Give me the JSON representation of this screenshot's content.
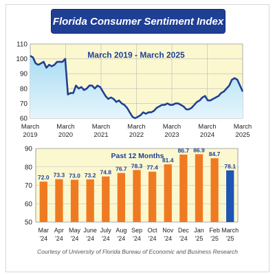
{
  "title": "Florida Consumer Sentiment Index",
  "credit": "Courtesy of University of Florida Bureau of Economic and Business Research",
  "colors": {
    "title_bg": "#1f3f94",
    "plot_bg": "#fbf8d0",
    "line": "#1f3f94",
    "area_top": "#a9dcf3",
    "bar_orange": "#f07a22",
    "bar_blue": "#1f55b5",
    "label_blue": "#1f3f94"
  },
  "chart_data": [
    {
      "type": "area",
      "title": "March 2019 - March 2025",
      "ylim": [
        60,
        110
      ],
      "yticks": [
        "110",
        "100",
        "90",
        "80",
        "70",
        "60"
      ],
      "xticks": [
        {
          "line1": "March",
          "line2": "2019"
        },
        {
          "line1": "March",
          "line2": "2020"
        },
        {
          "line1": "March",
          "line2": "2021"
        },
        {
          "line1": "March",
          "line2": "2022"
        },
        {
          "line1": "March",
          "line2": "2023"
        },
        {
          "line1": "March",
          "line2": "2024"
        },
        {
          "line1": "March",
          "line2": "2025"
        }
      ],
      "grid": true,
      "series": [
        {
          "values": [
            102,
            101,
            97,
            96,
            97,
            98,
            94,
            96,
            95,
            96,
            98,
            98,
            98,
            100,
            76,
            77,
            77,
            82,
            80,
            81,
            79,
            80,
            82,
            82,
            80,
            82,
            81,
            78,
            75,
            73,
            74,
            73,
            71,
            72,
            70,
            69,
            67,
            64,
            61,
            60,
            61,
            62,
            64,
            63,
            64,
            64,
            65,
            67,
            68,
            69,
            69,
            70,
            69,
            69,
            70,
            70,
            69,
            68,
            66,
            66,
            67,
            69,
            71,
            72,
            74,
            75,
            72,
            72,
            73,
            74,
            75,
            77,
            78,
            80,
            82,
            86,
            87,
            86,
            82,
            78
          ]
        }
      ]
    },
    {
      "type": "bar",
      "title": "Past 12 Months",
      "ylim": [
        50,
        90
      ],
      "yticks": [
        "90",
        "80",
        "70",
        "60",
        "50"
      ],
      "grid": true,
      "categories": [
        {
          "month": "Mar",
          "year": "'24"
        },
        {
          "month": "Apr",
          "year": "'24"
        },
        {
          "month": "May",
          "year": "'24"
        },
        {
          "month": "June",
          "year": "'24"
        },
        {
          "month": "July",
          "year": "'24"
        },
        {
          "month": "Aug",
          "year": "'24"
        },
        {
          "month": "Sep",
          "year": "'24"
        },
        {
          "month": "Oct",
          "year": "'24"
        },
        {
          "month": "Nov",
          "year": "'24"
        },
        {
          "month": "Dec",
          "year": "'24"
        },
        {
          "month": "Jan",
          "year": "'25"
        },
        {
          "month": "Feb",
          "year": "'25"
        },
        {
          "month": "March",
          "year": "'25"
        }
      ],
      "values": [
        72.0,
        73.3,
        73.0,
        73.2,
        74.8,
        76.7,
        78.3,
        77.4,
        81.4,
        86.7,
        86.9,
        84.7,
        78.1
      ],
      "labels": [
        "72.0",
        "73.3",
        "73.0",
        "73.2",
        "74.8",
        "76.7",
        "78.3",
        "77.4",
        "81.4",
        "86.7",
        "86.9",
        "84.7",
        "78.1"
      ],
      "highlight_last": true
    }
  ]
}
